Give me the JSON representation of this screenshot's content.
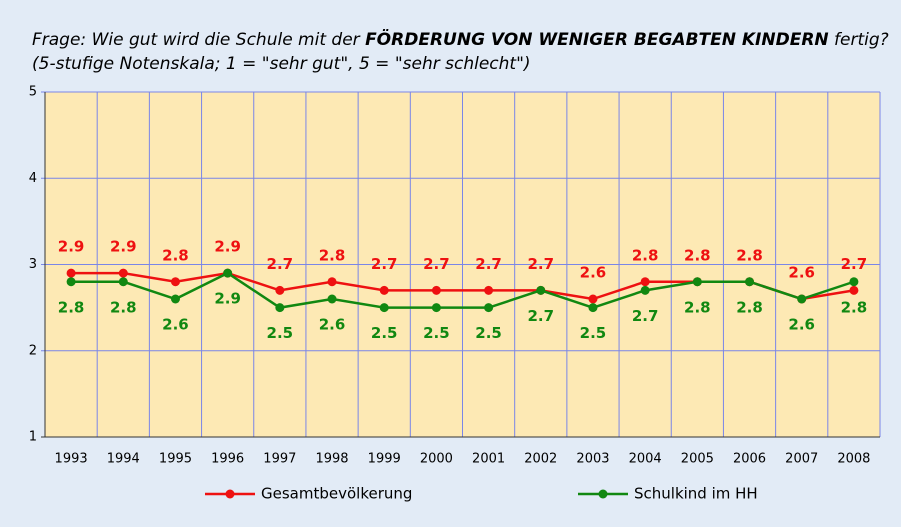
{
  "chart_data": {
    "type": "line",
    "title_parts": [
      "Frage: Wie gut wird die Schule mit der ",
      "FÖRDERUNG VON WENIGER BEGABTEN KINDERN",
      " fertig?"
    ],
    "subtitle": "(5-stufige Notenskala; 1 = \"sehr gut\", 5 = \"sehr schlecht\")",
    "categories": [
      "1993",
      "1994",
      "1995",
      "1996",
      "1997",
      "1998",
      "1999",
      "2000",
      "2001",
      "2002",
      "2003",
      "2004",
      "2005",
      "2006",
      "2007",
      "2008"
    ],
    "series": [
      {
        "name": "Gesamtbevölkerung",
        "color": "#ee1111",
        "values": [
          2.9,
          2.9,
          2.8,
          2.9,
          2.7,
          2.8,
          2.7,
          2.7,
          2.7,
          2.7,
          2.6,
          2.8,
          2.8,
          2.8,
          2.6,
          2.7
        ]
      },
      {
        "name": "Schulkind im HH",
        "color": "#118811",
        "values": [
          2.8,
          2.8,
          2.6,
          2.9,
          2.5,
          2.6,
          2.5,
          2.5,
          2.5,
          2.7,
          2.5,
          2.7,
          2.8,
          2.8,
          2.6,
          2.8
        ]
      }
    ],
    "ylim": [
      1,
      5
    ],
    "yticks": [
      1,
      2,
      3,
      4,
      5
    ],
    "grid": true,
    "legend": "bottom"
  }
}
